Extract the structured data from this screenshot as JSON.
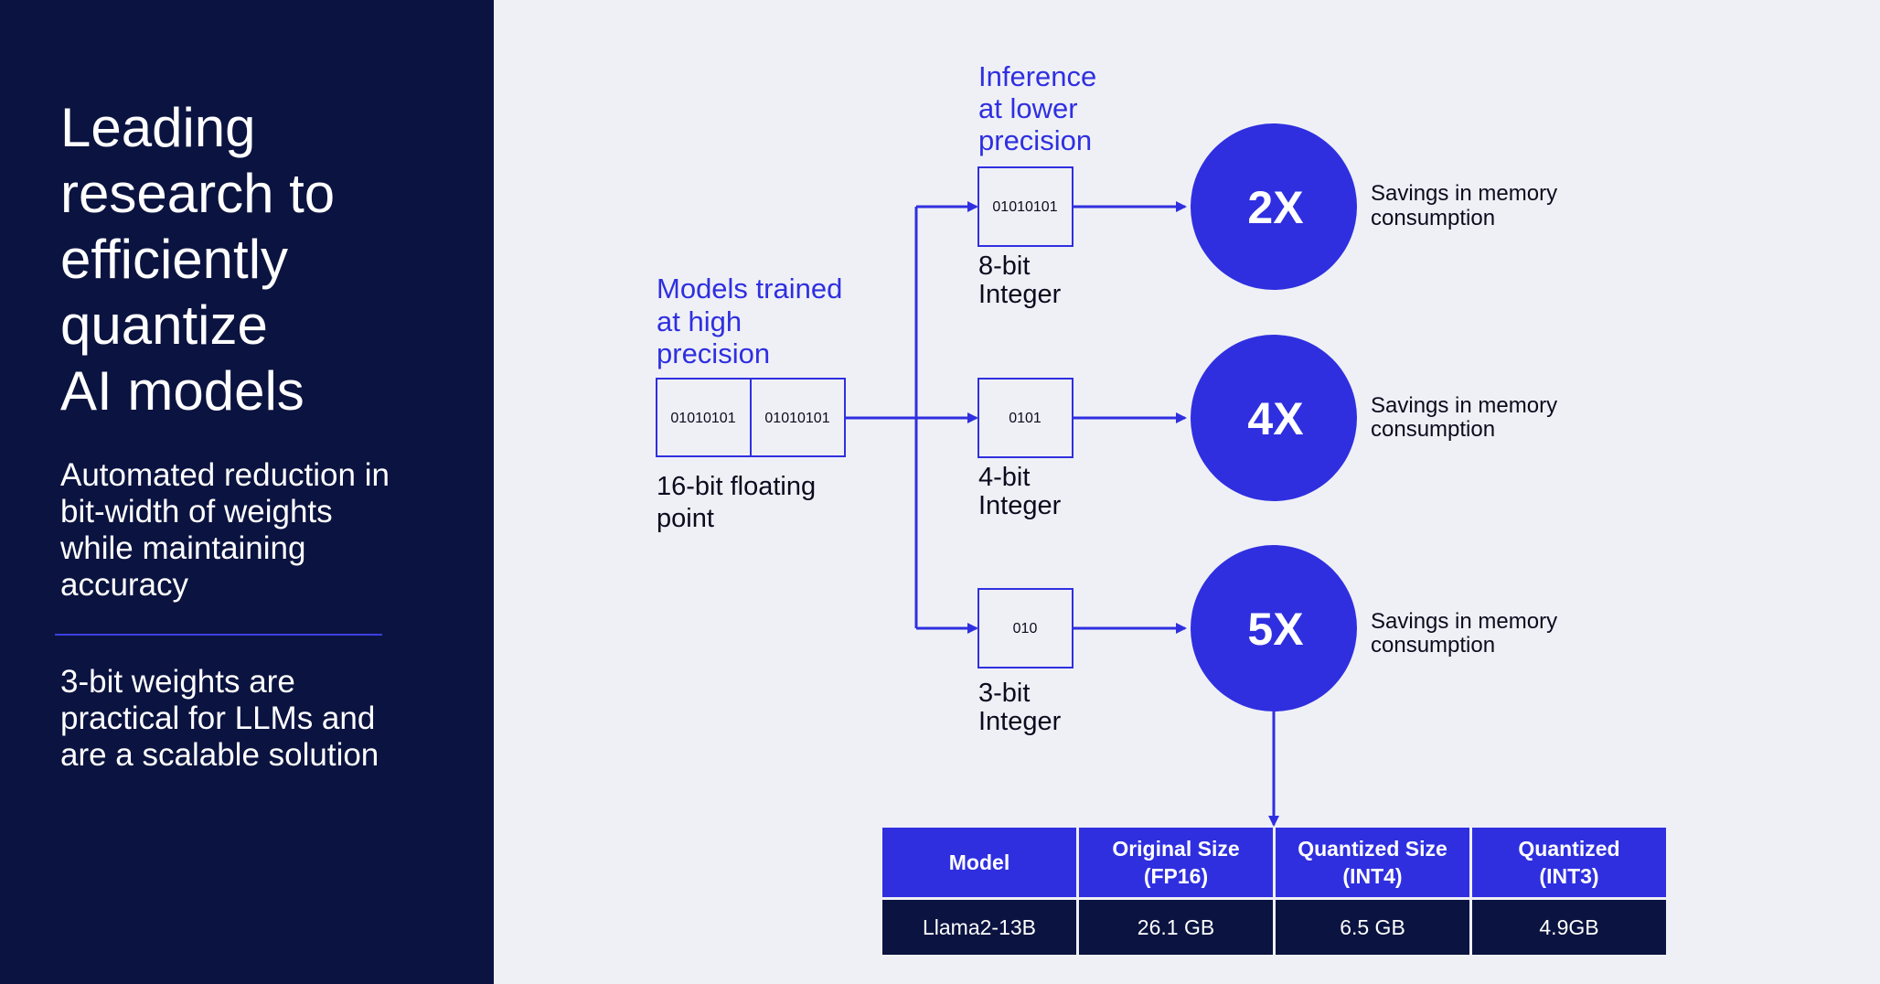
{
  "sidebar": {
    "title": "Leading\nresearch to\nefficiently\nquantize\nAI models",
    "subtitle": "Automated reduction in bit-width of weights while maintaining accuracy",
    "note": "3-bit weights are practical for LLMs and are a scalable solution"
  },
  "diagram": {
    "source_label": [
      "Models trained",
      "at high",
      "precision"
    ],
    "source_bits": [
      "01010101",
      "01010101"
    ],
    "source_caption": [
      "16-bit floating",
      "point"
    ],
    "inference_label": [
      "Inference",
      "at lower",
      "precision"
    ],
    "branches": [
      {
        "bits": "01010101",
        "caption": [
          "8-bit",
          "Integer"
        ],
        "factor": "2X",
        "savings": [
          "Savings in memory",
          "consumption"
        ]
      },
      {
        "bits": "0101",
        "caption": [
          "4-bit",
          "Integer"
        ],
        "factor": "4X",
        "savings": [
          "Savings in memory",
          "consumption"
        ]
      },
      {
        "bits": "010",
        "caption": [
          "3-bit",
          "Integer"
        ],
        "factor": "5X",
        "savings": [
          "Savings in memory",
          "consumption"
        ]
      }
    ]
  },
  "table": {
    "headers": [
      [
        "Model"
      ],
      [
        "Original Size",
        "(FP16)"
      ],
      [
        "Quantized Size",
        "(INT4)"
      ],
      [
        "Quantized",
        "(INT3)"
      ]
    ],
    "rows": [
      [
        "Llama2-13B",
        "26.1 GB",
        "6.5 GB",
        "4.9GB"
      ]
    ]
  },
  "colors": {
    "accent": "#2f2fe0",
    "navy": "#0b1340",
    "background": "#eff0f5"
  }
}
